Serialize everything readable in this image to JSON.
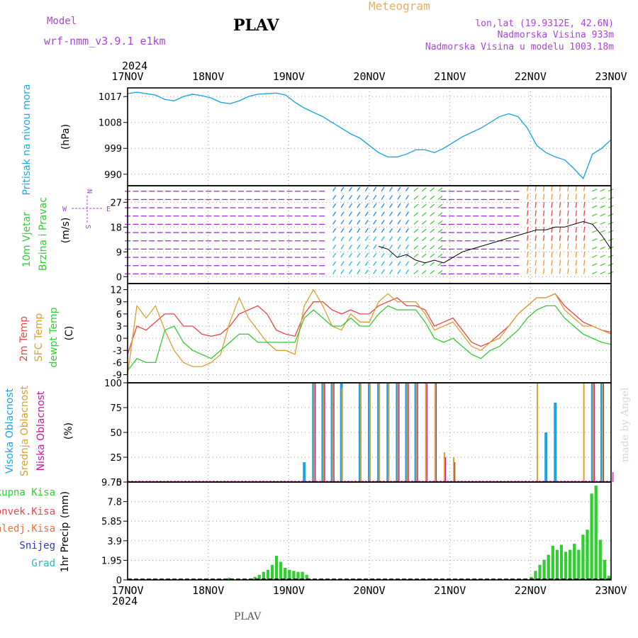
{
  "header": {
    "model_label": "Model",
    "model_name": "wrf-nmm_v3.9.1 e1km",
    "station": "PLAV",
    "title": "Meteogram",
    "coords": "lon,lat (19.9312E, 42.6N)",
    "elevation": "Nadmorska Visina 933m",
    "model_elevation": "Nadmorska Visina u modelu 1003.18m",
    "year": "2024",
    "footer_station": "PLAV",
    "watermark": "made by Angel"
  },
  "colors": {
    "pressure": "#1fa6e6",
    "temp2m": "#ee4444",
    "sfc_temp": "#d9a030",
    "dewpoint": "#33cc33",
    "high_cloud": "#1aa3e8",
    "mid_cloud": "#d9a030",
    "low_cloud": "#c0189e",
    "precip": "#33cc33",
    "wind_arrow": "#9933cc",
    "purple_text": "#aa44dd",
    "orange_text": "#e6b060"
  },
  "chart_data": [
    {
      "type": "line",
      "panel": "pressure",
      "ylabel_main": "Pritisak na nivou mora",
      "ylabel_unit": "(hPa)",
      "x_ticks": [
        "17NOV",
        "18NOV",
        "19NOV",
        "20NOV",
        "21NOV",
        "22NOV",
        "23NOV"
      ],
      "yticks": [
        990,
        999,
        1008,
        1017
      ],
      "ylim": [
        986,
        1020
      ],
      "grid": true,
      "series": [
        {
          "values": [
            1018,
            1018.5,
            1018,
            1017.5,
            1016,
            1015.5,
            1017,
            1017.8,
            1017.3,
            1016.5,
            1015,
            1014.5,
            1015.5,
            1017,
            1017.8,
            1018,
            1018.2,
            1017.5,
            1015,
            1013,
            1011.5,
            1010,
            1008,
            1006,
            1004,
            1002.5,
            1000,
            997.5,
            996,
            996,
            997,
            998.5,
            998.5,
            997.5,
            999,
            1001,
            1003,
            1004.5,
            1006,
            1008,
            1010,
            1011,
            1010,
            1006,
            1000,
            997.5,
            996,
            995,
            992,
            988.5,
            997,
            999,
            1002
          ]
        }
      ]
    },
    {
      "type": "line",
      "panel": "wind",
      "ylabel_main": "10m Vjetar",
      "ylabel_sub": "Brzina i Pravac",
      "ylabel_unit": "(m/s)",
      "compass": {
        "n": "N",
        "s": "S",
        "e": "E",
        "w": "W"
      },
      "yticks": [
        0,
        9,
        18,
        27
      ],
      "ylim": [
        -2.5,
        33
      ],
      "grid": true,
      "series": [
        {
          "values": [
            null,
            null,
            null,
            null,
            null,
            null,
            null,
            null,
            null,
            null,
            null,
            null,
            null,
            null,
            null,
            null,
            null,
            null,
            null,
            null,
            null,
            null,
            null,
            null,
            null,
            null,
            null,
            11,
            10,
            7,
            8,
            6,
            5,
            6,
            5,
            7,
            9,
            10,
            11,
            12,
            13,
            14,
            15,
            16,
            17,
            17,
            18,
            18,
            19,
            20,
            19,
            15,
            10
          ]
        }
      ]
    },
    {
      "type": "line",
      "panel": "temperature",
      "series_labels": [
        "2m Temp",
        "SFC Temp",
        "dewpt Temp"
      ],
      "ylabel_unit": "(C)",
      "yticks": [
        -9,
        -6,
        -3,
        0,
        3,
        6,
        9,
        12
      ],
      "ylim": [
        -11,
        13.5
      ],
      "grid": true,
      "series": [
        {
          "key": "temp2m",
          "values": [
            -4,
            3,
            2,
            4,
            6,
            6,
            3,
            3,
            1,
            0.5,
            1,
            3,
            6,
            7,
            8,
            6,
            2,
            1,
            0.5,
            6,
            9,
            9,
            7,
            6,
            7,
            6,
            6,
            8,
            9,
            10,
            8,
            8,
            7,
            3,
            4,
            5,
            2,
            -1,
            -2,
            -1,
            1,
            3,
            6,
            8,
            10,
            10,
            11,
            8,
            6,
            4,
            3,
            2,
            1.5
          ]
        },
        {
          "key": "sfc_temp",
          "values": [
            -9,
            8,
            5,
            8,
            2,
            -3,
            -6,
            -7,
            -7,
            -6,
            -4,
            4,
            10,
            5,
            2,
            -1,
            -3,
            -3,
            -4,
            8,
            12,
            8,
            3,
            2,
            6,
            4,
            4,
            9,
            11,
            9,
            9,
            9,
            6,
            2,
            3,
            4,
            1,
            -2,
            -3,
            -1,
            0,
            3,
            6,
            8,
            10,
            10,
            11,
            7,
            5,
            3,
            3,
            2,
            1
          ]
        },
        {
          "key": "dewpoint",
          "values": [
            -8,
            -5,
            -6,
            -6,
            2,
            3,
            -1,
            -3,
            -4,
            -5,
            -3,
            -1,
            1,
            1,
            -1,
            -1,
            -1,
            -1,
            -1,
            5,
            7,
            5,
            3,
            3,
            5,
            3,
            3,
            6,
            8,
            7,
            7,
            7,
            4,
            0,
            -1,
            0,
            -2,
            -4,
            -5,
            -3,
            -2,
            0,
            2,
            5,
            7,
            8,
            8,
            5,
            3,
            1,
            0,
            -1,
            -1.5
          ]
        }
      ]
    },
    {
      "type": "bar",
      "panel": "clouds",
      "series_labels": [
        "Visoka Oblacnost",
        "Srednja Oblacnost",
        "Niska Oblacnost"
      ],
      "ylabel_unit": "(%)",
      "yticks": [
        0,
        25,
        50,
        75,
        100
      ],
      "ylim": [
        0,
        100
      ],
      "grid": true,
      "series": [
        {
          "key": "high_cloud",
          "values": [
            0,
            0,
            0,
            0,
            0,
            0,
            0,
            0,
            0,
            0,
            0,
            0,
            0,
            0,
            0,
            0,
            0,
            0,
            0,
            20,
            100,
            100,
            100,
            100,
            0,
            100,
            100,
            100,
            100,
            100,
            100,
            100,
            0,
            0,
            0,
            0,
            0,
            0,
            0,
            0,
            0,
            0,
            0,
            0,
            0,
            50,
            80,
            0,
            0,
            0,
            100,
            100,
            0
          ]
        },
        {
          "key": "mid_cloud",
          "values": [
            0,
            0,
            0,
            0,
            0,
            0,
            0,
            0,
            0,
            0,
            0,
            0,
            0,
            0,
            0,
            0,
            0,
            0,
            0,
            0,
            100,
            100,
            100,
            95,
            0,
            100,
            100,
            100,
            100,
            100,
            100,
            100,
            100,
            100,
            30,
            25,
            0,
            0,
            0,
            0,
            0,
            0,
            0,
            0,
            100,
            0,
            0,
            0,
            0,
            100,
            100,
            100,
            0
          ]
        },
        {
          "key": "low_cloud",
          "values": [
            0,
            0,
            0,
            0,
            0,
            0,
            0,
            0,
            0,
            0,
            0,
            0,
            0,
            0,
            0,
            0,
            0,
            0,
            0,
            0,
            100,
            100,
            100,
            0,
            0,
            0,
            0,
            0,
            0,
            100,
            100,
            100,
            100,
            100,
            25,
            20,
            0,
            0,
            0,
            0,
            0,
            0,
            0,
            0,
            0,
            0,
            0,
            0,
            0,
            0,
            100,
            100,
            10
          ]
        }
      ]
    },
    {
      "type": "bar",
      "panel": "precipitation",
      "legend": [
        "Ukupna Kisa",
        "Konvek.Kisa",
        "Zaledj.Kisa",
        "Snijeg",
        "Grad"
      ],
      "ylabel_main": "1hr Precip",
      "ylabel_unit": "(mm)",
      "yticks": [
        0,
        1.95,
        3.9,
        5.85,
        7.8,
        9.75
      ],
      "ylim": [
        0,
        9.75
      ],
      "grid": true,
      "series": [
        {
          "key": "precip",
          "values": [
            0,
            0,
            0,
            0,
            0,
            0,
            0,
            0,
            0,
            0,
            0,
            0,
            0,
            0,
            0,
            0,
            0,
            0,
            0,
            0,
            0,
            0,
            0,
            0.2,
            0,
            0,
            0,
            0,
            0.1,
            0.3,
            0.5,
            0.8,
            1.0,
            1.5,
            2.4,
            1.8,
            1.2,
            1.0,
            0.9,
            0.8,
            0.8,
            0.5,
            0,
            0,
            0,
            0,
            0,
            0,
            0,
            0,
            0,
            0,
            0,
            0,
            0,
            0,
            0,
            0,
            0,
            0,
            0,
            0,
            0,
            0,
            0,
            0,
            0,
            0,
            0,
            0,
            0,
            0,
            0,
            0,
            0,
            0,
            0,
            0,
            0,
            0,
            0,
            0,
            0,
            0,
            0,
            0,
            0,
            0,
            0,
            0,
            0,
            0,
            0,
            0.3,
            0.9,
            1.5,
            2.0,
            2.5,
            3.4,
            3.0,
            3.5,
            2.8,
            3.0,
            3.6,
            3.0,
            4.5,
            5.0,
            8.6,
            9.4,
            4.0,
            2.0,
            0.4
          ]
        }
      ]
    }
  ]
}
